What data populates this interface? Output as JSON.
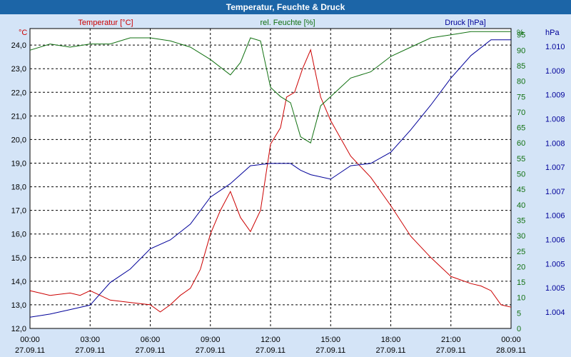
{
  "window": {
    "title": "Temperatur, Feuchte & Druck"
  },
  "chart_data": {
    "type": "line",
    "title": "Temperatur, Feuchte & Druck",
    "colors": {
      "temperature": "#cc0000",
      "humidity": "#107010",
      "pressure": "#000099",
      "background": "#ffffff",
      "frame": "#d4e4f7"
    },
    "axes": {
      "left": {
        "unit": "°C",
        "range": [
          12.0,
          24.7
        ],
        "ticks": [
          "12,0",
          "13,0",
          "14,0",
          "15,0",
          "16,0",
          "17,0",
          "18,0",
          "19,0",
          "20,0",
          "21,0",
          "22,0",
          "23,0",
          "24,0"
        ]
      },
      "right1": {
        "unit": "%",
        "range": [
          0,
          97
        ],
        "ticks": [
          "0",
          "5",
          "10",
          "15",
          "20",
          "25",
          "30",
          "35",
          "40",
          "45",
          "50",
          "55",
          "60",
          "65",
          "70",
          "75",
          "80",
          "85",
          "90",
          "95"
        ]
      },
      "right2": {
        "unit": "hPa",
        "range": [
          1003.63,
          1010.3
        ],
        "ticks": [
          "1.004",
          "1.005",
          "1.005",
          "1.006",
          "1.006",
          "1.007",
          "1.007",
          "1.008",
          "1.008",
          "1.009",
          "1.009",
          "1.010"
        ]
      }
    },
    "x_ticks": [
      {
        "time": "00:00",
        "date": "27.09.11"
      },
      {
        "time": "03:00",
        "date": "27.09.11"
      },
      {
        "time": "06:00",
        "date": "27.09.11"
      },
      {
        "time": "09:00",
        "date": "27.09.11"
      },
      {
        "time": "12:00",
        "date": "27.09.11"
      },
      {
        "time": "15:00",
        "date": "27.09.11"
      },
      {
        "time": "18:00",
        "date": "27.09.11"
      },
      {
        "time": "21:00",
        "date": "27.09.11"
      },
      {
        "time": "00:00",
        "date": "28.09.11"
      }
    ],
    "xlim_hours": [
      0,
      24
    ],
    "grid": true,
    "series": [
      {
        "name": "Temperatur [°C]",
        "axis": "left",
        "color": "#cc0000",
        "points": [
          [
            0,
            13.6
          ],
          [
            0.5,
            13.5
          ],
          [
            1,
            13.4
          ],
          [
            2,
            13.5
          ],
          [
            2.5,
            13.4
          ],
          [
            3,
            13.6
          ],
          [
            3.5,
            13.4
          ],
          [
            4,
            13.2
          ],
          [
            5,
            13.1
          ],
          [
            6,
            13.0
          ],
          [
            6.5,
            12.7
          ],
          [
            7,
            13.0
          ],
          [
            7.5,
            13.4
          ],
          [
            8,
            13.7
          ],
          [
            8.5,
            14.5
          ],
          [
            9,
            16.0
          ],
          [
            9.5,
            17.0
          ],
          [
            10,
            17.8
          ],
          [
            10.5,
            16.7
          ],
          [
            11,
            16.1
          ],
          [
            11.5,
            17.0
          ],
          [
            12,
            19.8
          ],
          [
            12.5,
            20.5
          ],
          [
            12.8,
            21.8
          ],
          [
            13.2,
            22.0
          ],
          [
            13.6,
            23.0
          ],
          [
            14,
            23.8
          ],
          [
            14.5,
            21.8
          ],
          [
            15,
            20.8
          ],
          [
            16,
            19.3
          ],
          [
            17,
            18.4
          ],
          [
            18,
            17.2
          ],
          [
            19,
            15.9
          ],
          [
            20,
            15.0
          ],
          [
            21,
            14.2
          ],
          [
            22,
            13.9
          ],
          [
            22.5,
            13.8
          ],
          [
            23,
            13.6
          ],
          [
            23.5,
            13.0
          ],
          [
            24,
            12.9
          ]
        ]
      },
      {
        "name": "rel. Feuchte [%]",
        "axis": "right1",
        "color": "#107010",
        "points": [
          [
            0,
            90
          ],
          [
            1,
            92
          ],
          [
            2,
            91
          ],
          [
            3,
            92
          ],
          [
            4,
            92
          ],
          [
            5,
            94
          ],
          [
            6,
            94
          ],
          [
            7,
            93
          ],
          [
            8,
            91
          ],
          [
            9,
            87
          ],
          [
            10,
            82
          ],
          [
            10.5,
            86
          ],
          [
            11,
            94
          ],
          [
            11.5,
            93
          ],
          [
            12,
            78
          ],
          [
            12.5,
            75
          ],
          [
            13,
            73
          ],
          [
            13.5,
            62
          ],
          [
            14,
            60
          ],
          [
            14.5,
            72
          ],
          [
            15,
            75
          ],
          [
            15.5,
            78
          ],
          [
            16,
            81
          ],
          [
            17,
            83
          ],
          [
            18,
            88
          ],
          [
            19,
            91
          ],
          [
            20,
            94
          ],
          [
            21,
            95
          ],
          [
            22,
            96
          ],
          [
            23,
            96
          ],
          [
            24,
            96
          ]
        ]
      },
      {
        "name": "Druck [hPa]",
        "axis": "right2",
        "color": "#000099",
        "points": [
          [
            0,
            1003.88
          ],
          [
            1,
            1003.95
          ],
          [
            2,
            1004.05
          ],
          [
            3,
            1004.15
          ],
          [
            4,
            1004.65
          ],
          [
            5,
            1004.95
          ],
          [
            6,
            1005.4
          ],
          [
            7,
            1005.6
          ],
          [
            8,
            1005.95
          ],
          [
            9,
            1006.55
          ],
          [
            10,
            1006.85
          ],
          [
            11,
            1007.25
          ],
          [
            12,
            1007.3
          ],
          [
            13,
            1007.3
          ],
          [
            13.5,
            1007.15
          ],
          [
            14,
            1007.05
          ],
          [
            15,
            1006.95
          ],
          [
            15.5,
            1007.1
          ],
          [
            16,
            1007.25
          ],
          [
            17,
            1007.3
          ],
          [
            18,
            1007.55
          ],
          [
            19,
            1008.05
          ],
          [
            20,
            1008.6
          ],
          [
            21,
            1009.2
          ],
          [
            22,
            1009.7
          ],
          [
            23,
            1010.05
          ],
          [
            24,
            1010.05
          ]
        ]
      }
    ]
  }
}
